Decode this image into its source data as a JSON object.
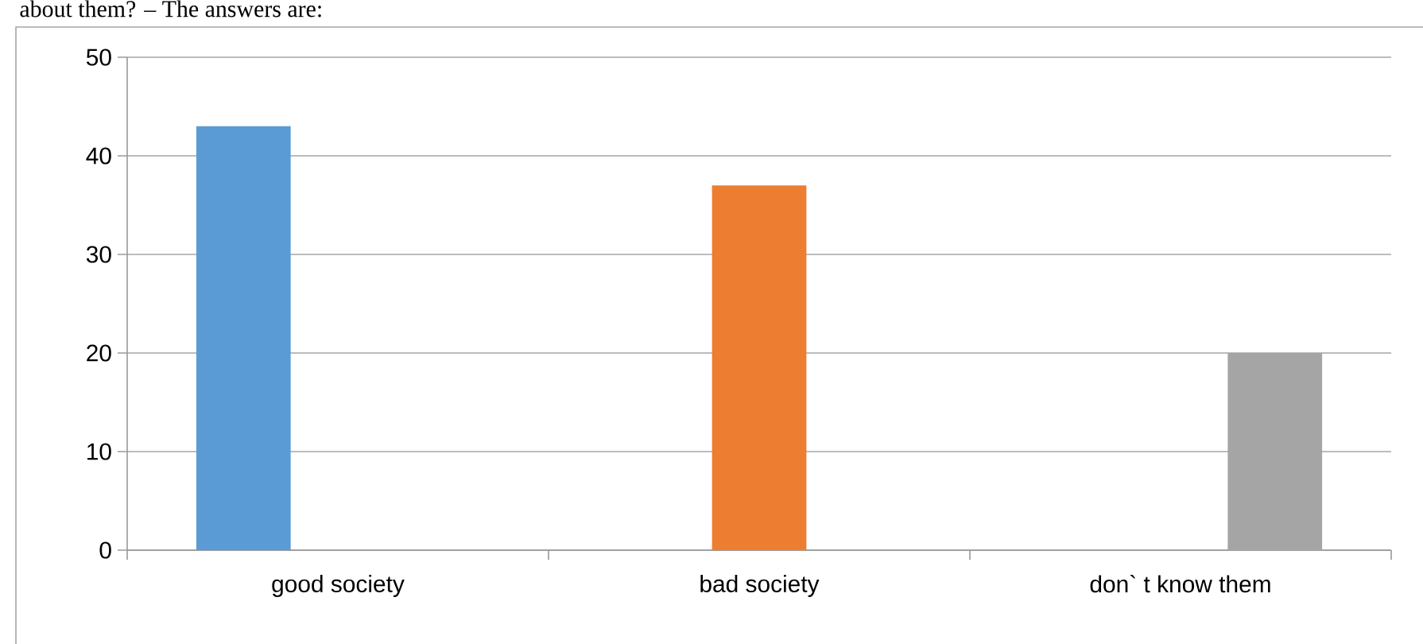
{
  "chart_data": {
    "type": "bar",
    "categories": [
      "good society",
      "bad society",
      "don` t know them"
    ],
    "series": [
      {
        "color": "#5b9bd5",
        "values": [
          43,
          null,
          null
        ]
      },
      {
        "color": "#ed7d31",
        "values": [
          null,
          37,
          null
        ]
      },
      {
        "color": "#a5a5a5",
        "values": [
          null,
          null,
          20
        ]
      }
    ],
    "ylim": [
      0,
      50
    ],
    "yticks": [
      0,
      10,
      20,
      30,
      40,
      50
    ],
    "grid": "y",
    "annotations": [
      "about them? – The answers are:"
    ]
  }
}
